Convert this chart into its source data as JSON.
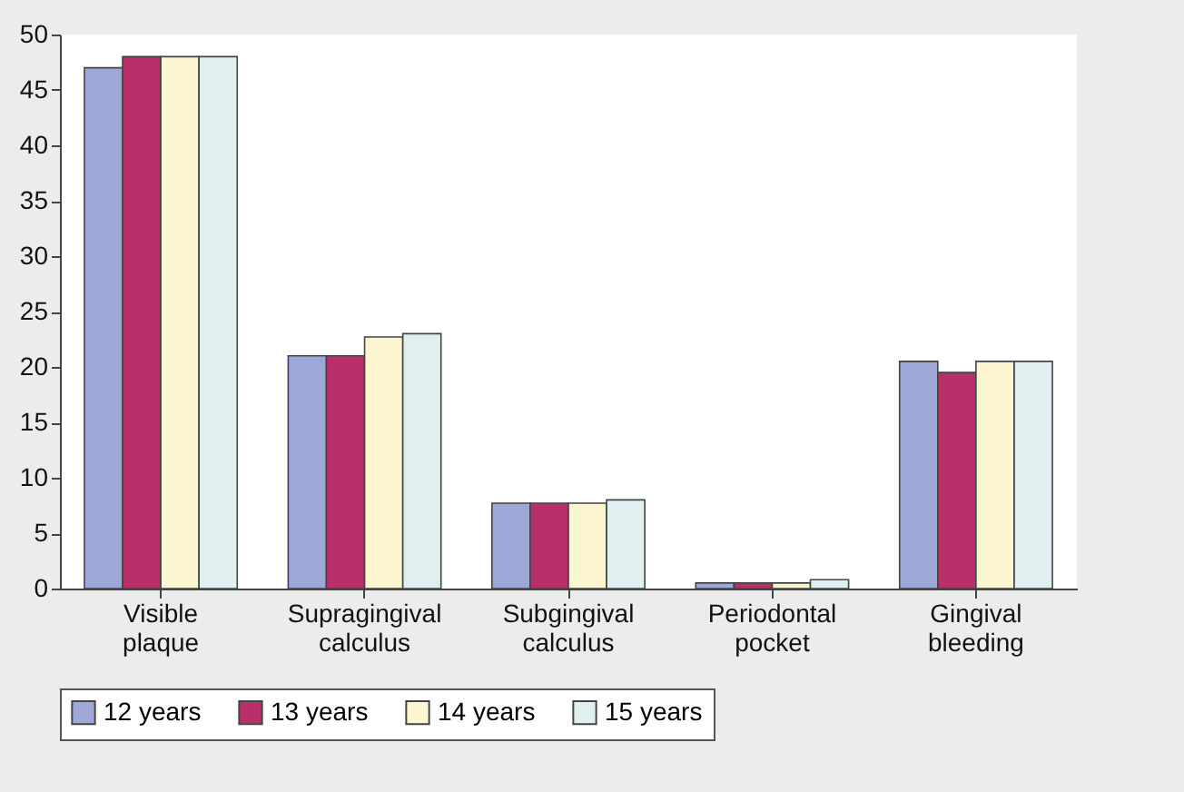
{
  "chart_data": {
    "type": "bar",
    "categories": [
      "Visible plaque",
      "Supragingival calculus",
      "Subgingival calculus",
      "Periodontal pocket",
      "Gingival bleeding"
    ],
    "series": [
      {
        "name": "12 years",
        "color": "#9da8d8",
        "values": [
          47,
          21,
          7.7,
          0.5,
          20.5
        ]
      },
      {
        "name": "13 years",
        "color": "#b8306a",
        "values": [
          48,
          21,
          7.7,
          0.5,
          19.5
        ]
      },
      {
        "name": "14 years",
        "color": "#fbf6d0",
        "values": [
          48,
          22.7,
          7.7,
          0.5,
          20.5
        ]
      },
      {
        "name": "15 years",
        "color": "#e0f0f0",
        "values": [
          48,
          23,
          8,
          0.8,
          20.5
        ]
      }
    ],
    "ylim": [
      0,
      50
    ],
    "yticks": [
      0,
      5,
      10,
      15,
      20,
      25,
      30,
      35,
      40,
      45,
      50
    ],
    "grid": false,
    "legend": "bottom"
  }
}
